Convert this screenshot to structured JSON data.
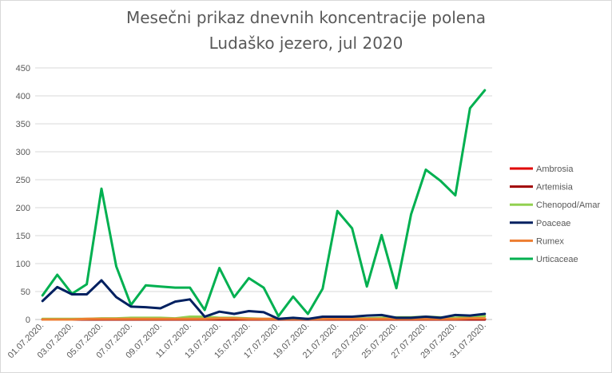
{
  "chart_data": {
    "type": "line",
    "title_lines": [
      "Mesečni prikaz dnevnih koncentracije polena",
      "Ludaško jezero, jul 2020"
    ],
    "ylim": [
      0,
      450
    ],
    "yticks": [
      0,
      50,
      100,
      150,
      200,
      250,
      300,
      350,
      400,
      450
    ],
    "grid": true,
    "legend_position": "right",
    "x": [
      "01.07.2020.",
      "02.07.2020.",
      "03.07.2020.",
      "04.07.2020.",
      "05.07.2020.",
      "06.07.2020.",
      "07.07.2020.",
      "08.07.2020.",
      "09.07.2020.",
      "10.07.2020.",
      "11.07.2020.",
      "12.07.2020.",
      "13.07.2020.",
      "14.07.2020.",
      "15.07.2020.",
      "16.07.2020.",
      "17.07.2020.",
      "18.07.2020.",
      "19.07.2020.",
      "20.07.2020.",
      "21.07.2020.",
      "22.07.2020.",
      "23.07.2020.",
      "24.07.2020.",
      "25.07.2020.",
      "26.07.2020.",
      "27.07.2020.",
      "28.07.2020.",
      "29.07.2020.",
      "30.07.2020.",
      "31.07.2020."
    ],
    "x_tick_labels": [
      "01.07.2020.",
      "03.07.2020.",
      "05.07.2020.",
      "07.07.2020.",
      "09.07.2020.",
      "11.07.2020.",
      "13.07.2020.",
      "15.07.2020.",
      "17.07.2020.",
      "19.07.2020.",
      "21.07.2020.",
      "23.07.2020.",
      "25.07.2020.",
      "27.07.2020.",
      "29.07.2020.",
      "31.07.2020."
    ],
    "series": [
      {
        "name": "Ambrosia",
        "color": "#e00000",
        "values": [
          0,
          0,
          0,
          0,
          0,
          0,
          0,
          0,
          0,
          0,
          0,
          0,
          0,
          0,
          0,
          0,
          0,
          0,
          0,
          0,
          0,
          0,
          0,
          0,
          0,
          0,
          0,
          0,
          0,
          1,
          1
        ]
      },
      {
        "name": "Artemisia",
        "color": "#a00000",
        "values": [
          0,
          0,
          0,
          0,
          0,
          0,
          0,
          0,
          0,
          0,
          0,
          0,
          0,
          0,
          0,
          0,
          0,
          0,
          0,
          0,
          0,
          0,
          0,
          0,
          0,
          0,
          0,
          0,
          0,
          0,
          0
        ]
      },
      {
        "name": "Chenopod/Amar",
        "color": "#92d050",
        "values": [
          1,
          1,
          1,
          1,
          2,
          2,
          3,
          3,
          3,
          2,
          5,
          5,
          3,
          3,
          2,
          1,
          1,
          1,
          1,
          1,
          2,
          2,
          2,
          3,
          4,
          4,
          5,
          4,
          3,
          5,
          6
        ]
      },
      {
        "name": "Poaceae",
        "color": "#002060",
        "values": [
          33,
          58,
          45,
          45,
          70,
          40,
          23,
          22,
          20,
          32,
          36,
          5,
          14,
          10,
          15,
          13,
          1,
          3,
          1,
          5,
          5,
          5,
          7,
          8,
          3,
          3,
          5,
          3,
          8,
          7,
          10
        ]
      },
      {
        "name": "Rumex",
        "color": "#ed7d31",
        "values": [
          0,
          0,
          0,
          1,
          1,
          1,
          1,
          1,
          1,
          1,
          1,
          1,
          2,
          2,
          1,
          1,
          1,
          1,
          1,
          1,
          1,
          1,
          1,
          1,
          1,
          1,
          1,
          1,
          1,
          2,
          2
        ]
      },
      {
        "name": "Urticaceae",
        "color": "#00b050",
        "values": [
          43,
          80,
          46,
          63,
          234,
          95,
          26,
          61,
          59,
          57,
          57,
          17,
          92,
          40,
          74,
          57,
          6,
          41,
          10,
          55,
          194,
          163,
          59,
          151,
          56,
          188,
          268,
          248,
          222,
          378,
          410
        ]
      }
    ]
  }
}
